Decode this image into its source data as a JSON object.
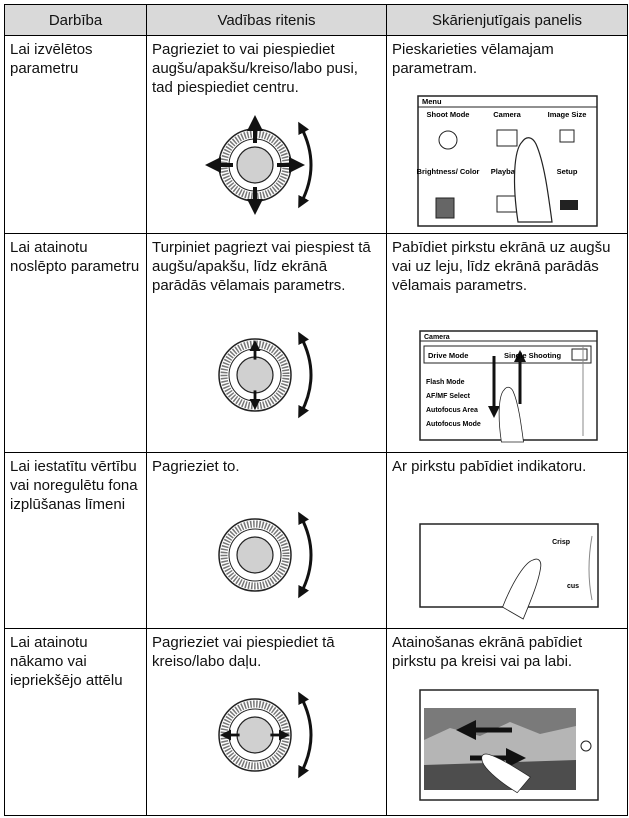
{
  "table": {
    "header": [
      "Darbība",
      "Vadības ritenis",
      "Skārienjutīgais panelis"
    ],
    "rows": [
      [
        "Lai izvēlētos parametru",
        "Pagrieziet to vai piespiediet augšu/apakšu/kreiso/labo pusi, tad piespiediet centru.",
        "Pieskarieties vēlamajam parametram."
      ],
      [
        "Lai atainotu noslēpto parametru",
        "Turpiniet pagriezt vai piespiest tā augšu/apakšu, līdz ekrānā parādās vēlamais parametrs.",
        "Pabīdiet pirkstu ekrānā uz augšu vai uz leju, līdz ekrānā parādās vēlamais parametrs."
      ],
      [
        "Lai iestatītu vērtību vai noregulētu fona izplūšanas līmeni",
        "Pagrieziet to.",
        "Ar pirkstu pabīdiet indikatoru."
      ],
      [
        "Lai atainotu nākamo vai iepriekšējo attēlu",
        "Pagrieziet vai piespiediet tā kreiso/labo daļu.",
        "Atainošanas ekrānā pabīdiet pirkstu pa kreisi vai pa labi."
      ]
    ]
  },
  "screens": {
    "menu": {
      "title": "Menu",
      "items": [
        "Shoot Mode",
        "Camera",
        "Image Size",
        "Brightness/ Color",
        "Playback",
        "Setup"
      ]
    },
    "list": {
      "title": "Camera",
      "items": [
        "Drive Mode",
        "Single Shooting",
        "Flash Mode",
        "AF/MF Select",
        "Autofocus Area",
        "Autofocus Mode"
      ]
    },
    "slider": {
      "items": [
        "Crisp",
        "cus"
      ]
    }
  }
}
